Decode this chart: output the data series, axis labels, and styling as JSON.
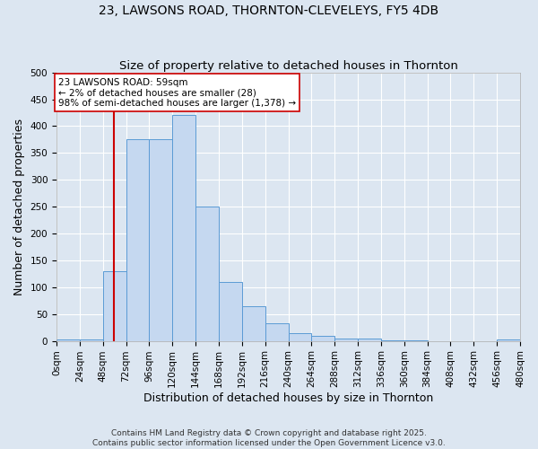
{
  "title1": "23, LAWSONS ROAD, THORNTON-CLEVELEYS, FY5 4DB",
  "title2": "Size of property relative to detached houses in Thornton",
  "xlabel": "Distribution of detached houses by size in Thornton",
  "ylabel": "Number of detached properties",
  "bin_edges": [
    0,
    24,
    48,
    72,
    96,
    120,
    144,
    168,
    192,
    216,
    240,
    264,
    288,
    312,
    336,
    360,
    384,
    408,
    432,
    456,
    480
  ],
  "bar_heights": [
    3,
    3,
    130,
    375,
    375,
    420,
    250,
    110,
    65,
    33,
    15,
    9,
    5,
    5,
    1,
    1,
    0,
    0,
    0,
    3
  ],
  "bar_color": "#c5d8f0",
  "bar_edge_color": "#5b9bd5",
  "vline_x": 59,
  "vline_color": "#cc0000",
  "annotation_line1": "23 LAWSONS ROAD: 59sqm",
  "annotation_line2": "← 2% of detached houses are smaller (28)",
  "annotation_line3": "98% of semi-detached houses are larger (1,378) →",
  "annotation_box_color": "#ffffff",
  "annotation_box_edge": "#cc0000",
  "ylim": [
    0,
    500
  ],
  "yticks": [
    0,
    50,
    100,
    150,
    200,
    250,
    300,
    350,
    400,
    450,
    500
  ],
  "background_color": "#dce6f1",
  "grid_color": "#ffffff",
  "footer1": "Contains HM Land Registry data © Crown copyright and database right 2025.",
  "footer2": "Contains public sector information licensed under the Open Government Licence v3.0.",
  "title_fontsize": 10,
  "subtitle_fontsize": 9.5,
  "axis_label_fontsize": 9,
  "tick_fontsize": 7.5,
  "annotation_fontsize": 7.5,
  "footer_fontsize": 6.5
}
